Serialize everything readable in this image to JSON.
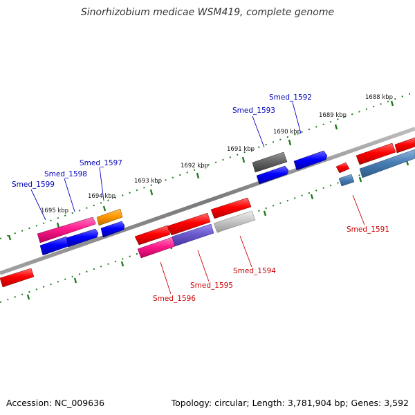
{
  "title": "Sinorhizobium medicae WSM419, complete genome",
  "footer": {
    "accession": "Accession: NC_009636",
    "topology": "Topology: circular; Length: 3,781,904 bp; Genes: 3,592"
  },
  "colors": {
    "backbone": "#8a8a8a",
    "tick": "#1e7a1e",
    "label_top": "#0000bb",
    "label_bottom": "#cc0000",
    "red": "#ff0000",
    "blue": "#0000ff",
    "magenta": "#ff1a8c",
    "orange": "#ff9900",
    "gray_dark": "#666666",
    "gray_light": "#c8c8c8",
    "steel": "#4a7fb5",
    "purple": "#6a5acd"
  },
  "kbp_labels": [
    "1688 kbp",
    "1689 kbp",
    "1690 kbp",
    "1691 kbp",
    "1692 kbp",
    "1693 kbp",
    "1694 kbp",
    "1695 kbp"
  ],
  "gene_labels_top": [
    "Smed_1592",
    "Smed_1593",
    "Smed_1597",
    "Smed_1598",
    "Smed_1599"
  ],
  "gene_labels_bottom": [
    "Smed_1591",
    "Smed_1594",
    "Smed_1595",
    "Smed_1596"
  ]
}
